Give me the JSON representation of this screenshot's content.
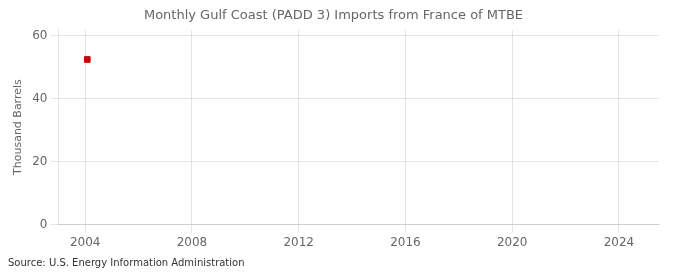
{
  "chart_data": {
    "type": "scatter",
    "title": "Monthly Gulf Coast (PADD 3) Imports from France of MTBE",
    "y_label": "Thousand Barrels",
    "source": "Source: U.S. Energy Information Administration",
    "x": [
      2004.08
    ],
    "values": [
      52.5
    ],
    "color": "#cc0000",
    "marker": "square",
    "xlim": [
      2003.0,
      2025.5
    ],
    "xticks": [
      2004,
      2008,
      2012,
      2016,
      2020,
      2024
    ],
    "ylim": [
      0,
      62
    ],
    "yticks": [
      0,
      20,
      40,
      60
    ],
    "grid": true
  }
}
